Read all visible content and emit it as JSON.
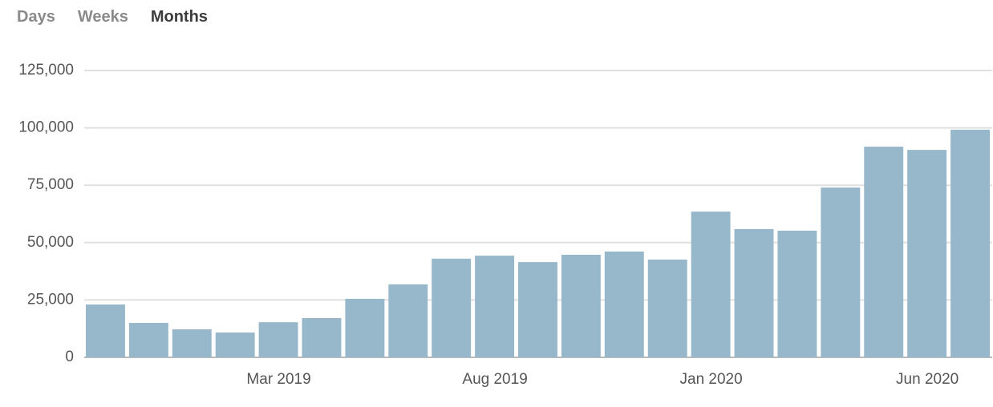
{
  "tabs": [
    "Days",
    "Weeks",
    "Months"
  ],
  "active_tab": 2,
  "chart_data": {
    "type": "bar",
    "categories": [
      null,
      null,
      null,
      null,
      "Mar 2019",
      null,
      null,
      null,
      null,
      "Aug 2019",
      null,
      null,
      null,
      null,
      "Jan 2020",
      null,
      null,
      null,
      null,
      "Jun 2020",
      null
    ],
    "values": [
      23000,
      15000,
      12200,
      10800,
      15300,
      17100,
      25500,
      31800,
      43000,
      44300,
      41500,
      44700,
      46100,
      42600,
      63500,
      55900,
      55200,
      74000,
      91800,
      90400,
      99200
    ],
    "color": "#97b7ca",
    "ylim": [
      0,
      125000
    ],
    "yticks": [
      0,
      {
        "value": 25000,
        "label": "25,000"
      },
      {
        "value": 50000,
        "label": "50,000"
      },
      {
        "value": 75000,
        "label": "75,000"
      },
      {
        "value": 100000,
        "label": "100,000"
      },
      {
        "value": 125000,
        "label": "125,000"
      }
    ],
    "grid": true
  }
}
